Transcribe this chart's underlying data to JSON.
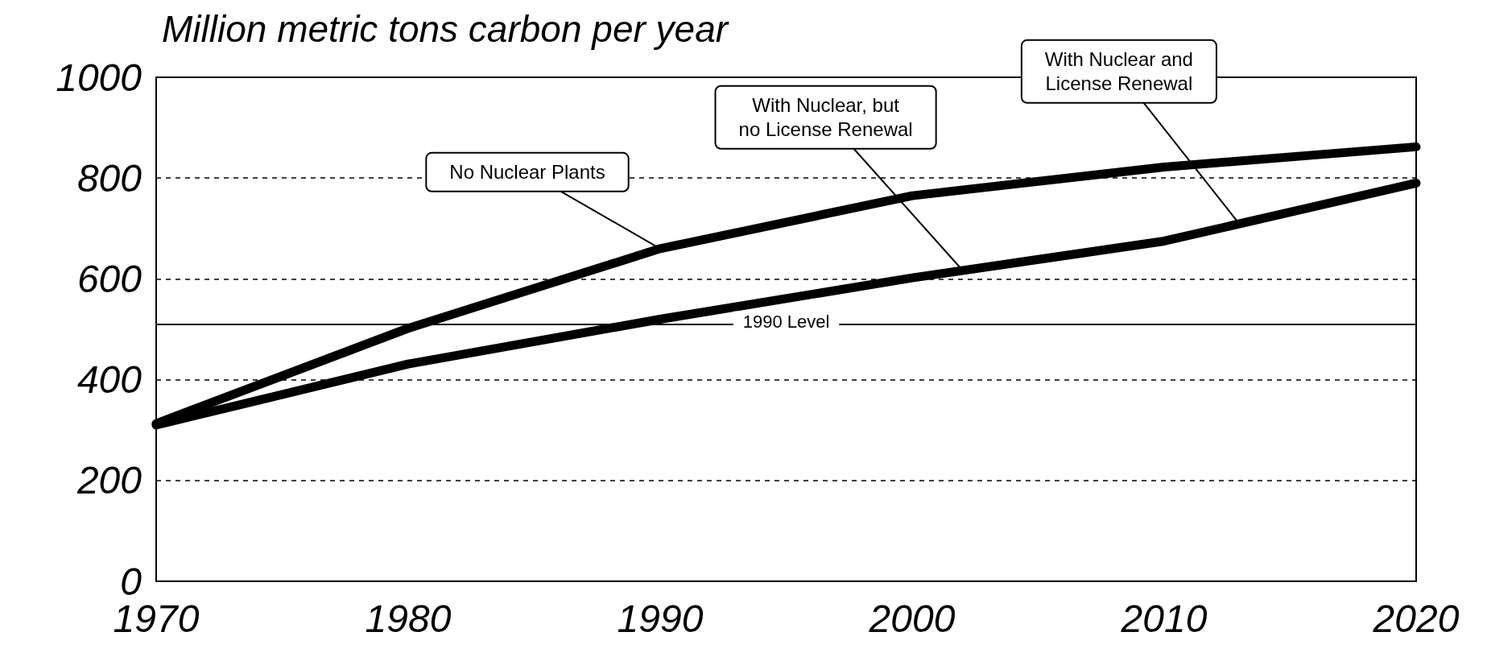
{
  "chart_data": {
    "type": "line",
    "ylabel": "Million metric tons carbon per year",
    "x": [
      1970,
      1980,
      1990,
      2000,
      2010,
      2020
    ],
    "series": [
      {
        "color": "#000000",
        "values": [
          313,
          502,
          660,
          765,
          822,
          862
        ]
      },
      {
        "color": "#000000",
        "values": [
          310,
          431,
          520,
          602,
          675,
          790
        ]
      }
    ],
    "xlim": [
      1970,
      2020
    ],
    "xticks": [
      1970,
      1980,
      1990,
      2000,
      2010,
      2020
    ],
    "ylim": [
      0,
      1000
    ],
    "yticks": [
      0,
      200,
      400,
      600,
      800,
      1000
    ],
    "grid": "y",
    "line_style": "solid",
    "ref_lines": [
      {
        "axis": "y",
        "value": 510,
        "label": "1990 Level"
      }
    ],
    "annotations": [
      {
        "text": "No Nuclear Plants",
        "x": 1990,
        "y": 660
      },
      {
        "text": "With Nuclear, but\nno License Renewal",
        "x": 2002,
        "y": 617
      },
      {
        "text": "With Nuclear and\nLicense Renewal",
        "x": 2013,
        "y": 708
      }
    ]
  }
}
